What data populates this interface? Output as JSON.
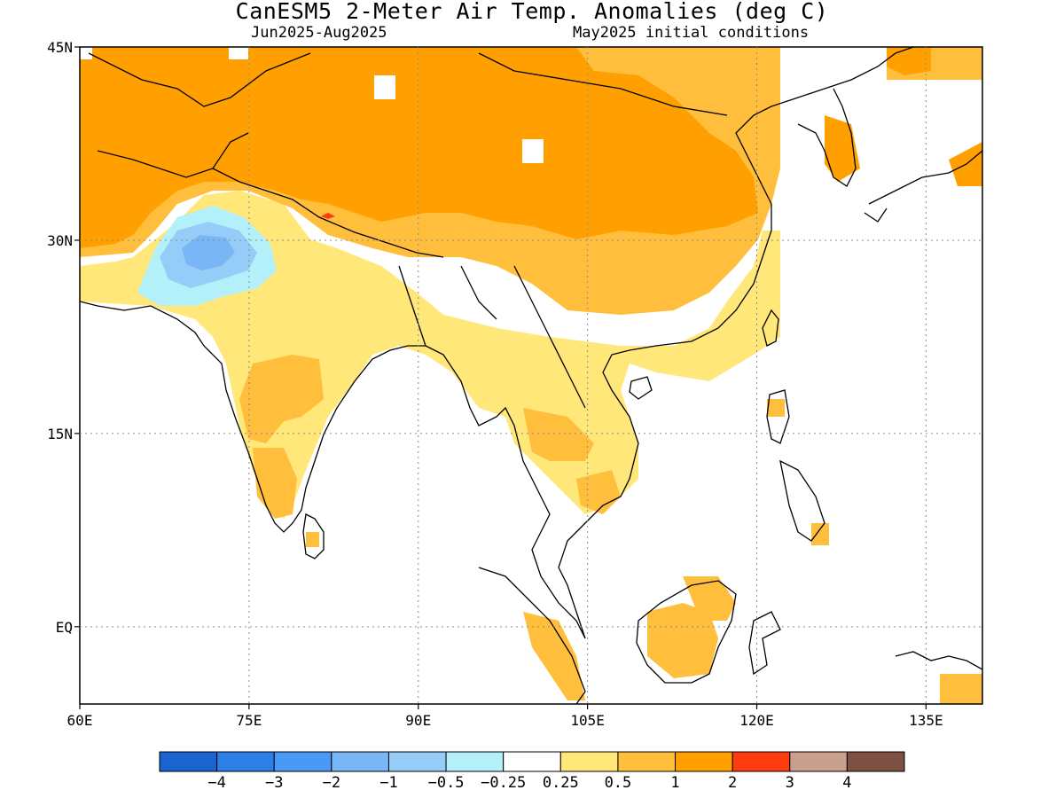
{
  "title": "CanESM5 2-Meter Air Temp. Anomalies (deg C)",
  "subtitle_left": "Jun2025-Aug2025",
  "subtitle_right": "May2025 initial conditions",
  "map": {
    "lon_range": [
      60,
      140
    ],
    "lat_range": [
      -6,
      45
    ],
    "x_ticks": [
      {
        "value": 60,
        "label": "60E"
      },
      {
        "value": 75,
        "label": "75E"
      },
      {
        "value": 90,
        "label": "90E"
      },
      {
        "value": 105,
        "label": "105E"
      },
      {
        "value": 120,
        "label": "120E"
      },
      {
        "value": 135,
        "label": "135E"
      }
    ],
    "y_ticks": [
      {
        "value": 45,
        "label": "45N"
      },
      {
        "value": 30,
        "label": "30N"
      },
      {
        "value": 15,
        "label": "15N"
      },
      {
        "value": 0,
        "label": "EQ"
      }
    ],
    "grid": "dotted"
  },
  "colorbar": {
    "colors": [
      "#1a64d2",
      "#2d7fe8",
      "#4a9af5",
      "#78b6f5",
      "#96cdf8",
      "#b4f0fa",
      "#ffffff",
      "#ffe77a",
      "#ffbe3c",
      "#ffa000",
      "#ff3c0f",
      "#c8a08c",
      "#7d5041"
    ],
    "labels": [
      "-4",
      "-3",
      "-2",
      "-1",
      "-0.5",
      "-0.25",
      "0.25",
      "0.5",
      "1",
      "2",
      "3",
      "4"
    ]
  },
  "colors": {
    "light_yellow": "#ffe77a",
    "light_orange": "#ffbe3c",
    "orange": "#ffa000",
    "red": "#ff3c0f",
    "pale_blue": "#b4f0fa",
    "light_blue": "#96cdf8",
    "mid_blue": "#78b6f5"
  }
}
